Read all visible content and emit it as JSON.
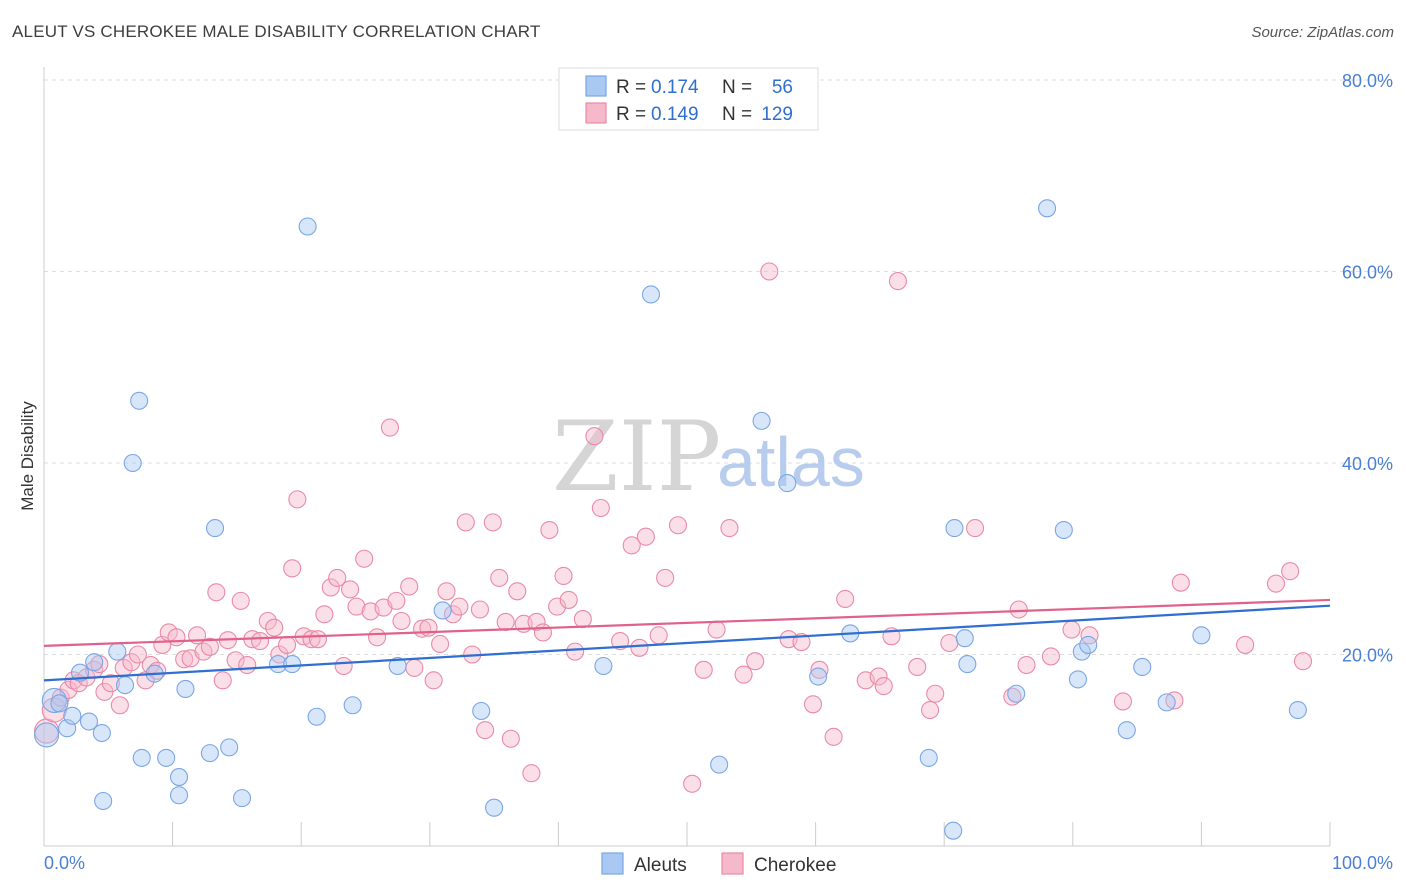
{
  "header": {
    "title": "ALEUT VS CHEROKEE MALE DISABILITY CORRELATION CHART",
    "source": "Source: ZipAtlas.com"
  },
  "watermark": {
    "part1": "ZIP",
    "part2": "atlas"
  },
  "legend_top": {
    "rows": [
      {
        "r_label": "R =",
        "r_value": "0.174",
        "n_label": "N =",
        "n_value": "56",
        "color": "#a9c8f2"
      },
      {
        "r_label": "R =",
        "r_value": "0.149",
        "n_label": "N =",
        "n_value": "129",
        "color": "#f6b9cb"
      }
    ]
  },
  "legend_bottom": {
    "items": [
      {
        "label": "Aleuts",
        "color": "#a9c8f2"
      },
      {
        "label": "Cherokee",
        "color": "#f6b9cb"
      }
    ]
  },
  "chart_data": {
    "type": "scatter",
    "title": "ALEUT VS CHEROKEE MALE DISABILITY CORRELATION CHART",
    "xlabel": "",
    "ylabel": "Male Disability",
    "xlim": [
      0,
      100
    ],
    "ylim": [
      0,
      80
    ],
    "x_tick_labels": [
      "0.0%",
      "100.0%"
    ],
    "y_ticks": [
      20,
      40,
      60,
      80
    ],
    "y_tick_labels": [
      "20.0%",
      "40.0%",
      "60.0%",
      "80.0%"
    ],
    "grid": "horizontal dashed",
    "legend_position": "top-center",
    "series": [
      {
        "name": "Aleuts",
        "color": "#7aa6e6",
        "fill": "#a9c8f2",
        "trend": {
          "x": [
            0,
            100
          ],
          "y": [
            17.3,
            25.1
          ]
        },
        "points": [
          [
            0.2,
            11.6
          ],
          [
            0.8,
            15.2
          ],
          [
            1.2,
            14.9
          ],
          [
            1.8,
            12.3
          ],
          [
            2.2,
            13.6
          ],
          [
            2.8,
            18.1
          ],
          [
            3.5,
            13.0
          ],
          [
            3.9,
            19.2
          ],
          [
            4.5,
            11.8
          ],
          [
            4.6,
            4.7
          ],
          [
            5.7,
            20.3
          ],
          [
            6.3,
            16.8
          ],
          [
            6.9,
            40.0
          ],
          [
            7.4,
            46.5
          ],
          [
            7.6,
            9.2
          ],
          [
            8.6,
            18.0
          ],
          [
            9.5,
            9.2
          ],
          [
            10.5,
            5.3
          ],
          [
            10.5,
            7.2
          ],
          [
            11.0,
            16.4
          ],
          [
            12.9,
            9.7
          ],
          [
            13.3,
            33.2
          ],
          [
            14.4,
            10.3
          ],
          [
            15.4,
            5.0
          ],
          [
            18.2,
            19.0
          ],
          [
            19.3,
            19.0
          ],
          [
            20.5,
            64.7
          ],
          [
            21.2,
            13.5
          ],
          [
            24.0,
            14.7
          ],
          [
            27.5,
            18.8
          ],
          [
            31.0,
            24.6
          ],
          [
            34.0,
            14.1
          ],
          [
            35.0,
            4.0
          ],
          [
            43.5,
            18.8
          ],
          [
            47.2,
            57.6
          ],
          [
            52.5,
            8.5
          ],
          [
            55.8,
            44.4
          ],
          [
            57.8,
            37.9
          ],
          [
            60.2,
            17.7
          ],
          [
            62.7,
            22.2
          ],
          [
            68.8,
            9.2
          ],
          [
            70.7,
            1.6
          ],
          [
            70.8,
            33.2
          ],
          [
            71.6,
            21.7
          ],
          [
            71.8,
            19.0
          ],
          [
            75.6,
            15.9
          ],
          [
            78.0,
            66.6
          ],
          [
            79.3,
            33.0
          ],
          [
            80.4,
            17.4
          ],
          [
            80.7,
            20.3
          ],
          [
            81.2,
            21.0
          ],
          [
            84.2,
            12.1
          ],
          [
            85.4,
            18.7
          ],
          [
            87.3,
            15.0
          ],
          [
            90.0,
            22.0
          ],
          [
            97.5,
            14.2
          ]
        ]
      },
      {
        "name": "Cherokee",
        "color": "#e98aa6",
        "fill": "#f6b9cb",
        "trend": {
          "x": [
            0,
            100
          ],
          "y": [
            20.9,
            25.7
          ]
        },
        "points": [
          [
            0.2,
            12.0
          ],
          [
            0.8,
            14.2
          ],
          [
            1.3,
            15.5
          ],
          [
            1.9,
            16.3
          ],
          [
            2.3,
            17.3
          ],
          [
            2.7,
            17.0
          ],
          [
            3.3,
            17.6
          ],
          [
            3.9,
            18.4
          ],
          [
            4.3,
            19.0
          ],
          [
            4.7,
            16.1
          ],
          [
            5.2,
            17.0
          ],
          [
            5.9,
            14.7
          ],
          [
            6.2,
            18.6
          ],
          [
            6.8,
            19.2
          ],
          [
            7.3,
            20.0
          ],
          [
            7.9,
            17.3
          ],
          [
            8.3,
            18.9
          ],
          [
            8.8,
            18.3
          ],
          [
            9.2,
            21.0
          ],
          [
            9.7,
            22.3
          ],
          [
            10.3,
            21.8
          ],
          [
            10.9,
            19.5
          ],
          [
            11.4,
            19.6
          ],
          [
            11.9,
            22.0
          ],
          [
            12.4,
            20.3
          ],
          [
            12.9,
            20.8
          ],
          [
            13.4,
            26.5
          ],
          [
            13.9,
            17.3
          ],
          [
            14.3,
            21.5
          ],
          [
            14.9,
            19.4
          ],
          [
            15.3,
            25.6
          ],
          [
            15.8,
            18.9
          ],
          [
            16.2,
            21.6
          ],
          [
            16.8,
            21.4
          ],
          [
            17.4,
            23.5
          ],
          [
            17.9,
            22.8
          ],
          [
            18.3,
            20.0
          ],
          [
            18.9,
            21.0
          ],
          [
            19.3,
            29.0
          ],
          [
            19.7,
            36.2
          ],
          [
            20.2,
            21.9
          ],
          [
            20.8,
            21.6
          ],
          [
            21.3,
            21.6
          ],
          [
            21.8,
            24.2
          ],
          [
            22.3,
            27.0
          ],
          [
            22.8,
            28.0
          ],
          [
            23.3,
            18.8
          ],
          [
            23.8,
            26.8
          ],
          [
            24.3,
            25.0
          ],
          [
            24.9,
            30.0
          ],
          [
            25.4,
            24.5
          ],
          [
            25.9,
            21.8
          ],
          [
            26.4,
            24.9
          ],
          [
            26.9,
            43.7
          ],
          [
            27.4,
            25.6
          ],
          [
            27.8,
            23.5
          ],
          [
            28.4,
            27.1
          ],
          [
            28.8,
            18.6
          ],
          [
            29.4,
            22.7
          ],
          [
            29.9,
            22.8
          ],
          [
            30.3,
            17.3
          ],
          [
            30.8,
            21.1
          ],
          [
            31.3,
            26.6
          ],
          [
            31.8,
            24.2
          ],
          [
            32.3,
            25.0
          ],
          [
            32.8,
            33.8
          ],
          [
            33.3,
            20.0
          ],
          [
            33.9,
            24.7
          ],
          [
            34.3,
            12.1
          ],
          [
            34.9,
            33.8
          ],
          [
            35.4,
            28.0
          ],
          [
            35.9,
            23.4
          ],
          [
            36.3,
            11.2
          ],
          [
            36.8,
            26.6
          ],
          [
            37.3,
            23.2
          ],
          [
            37.9,
            7.6
          ],
          [
            38.3,
            23.4
          ],
          [
            38.8,
            22.3
          ],
          [
            39.3,
            33.0
          ],
          [
            39.9,
            25.0
          ],
          [
            40.4,
            28.2
          ],
          [
            40.8,
            25.7
          ],
          [
            41.3,
            20.3
          ],
          [
            41.9,
            23.7
          ],
          [
            42.8,
            42.8
          ],
          [
            43.3,
            35.3
          ],
          [
            44.8,
            21.4
          ],
          [
            45.7,
            31.4
          ],
          [
            46.3,
            20.7
          ],
          [
            46.8,
            32.3
          ],
          [
            47.8,
            22.0
          ],
          [
            48.3,
            28.0
          ],
          [
            49.3,
            33.5
          ],
          [
            50.4,
            6.5
          ],
          [
            51.3,
            18.4
          ],
          [
            52.3,
            22.6
          ],
          [
            53.3,
            33.2
          ],
          [
            54.4,
            17.9
          ],
          [
            55.3,
            19.3
          ],
          [
            56.4,
            60.0
          ],
          [
            57.9,
            21.6
          ],
          [
            58.9,
            21.3
          ],
          [
            59.8,
            14.8
          ],
          [
            60.3,
            18.4
          ],
          [
            61.4,
            11.4
          ],
          [
            62.3,
            25.8
          ],
          [
            63.9,
            17.3
          ],
          [
            64.9,
            17.7
          ],
          [
            65.3,
            16.7
          ],
          [
            65.9,
            21.9
          ],
          [
            66.4,
            59.0
          ],
          [
            67.9,
            18.7
          ],
          [
            68.9,
            14.2
          ],
          [
            69.3,
            15.9
          ],
          [
            70.4,
            21.2
          ],
          [
            72.4,
            33.2
          ],
          [
            75.3,
            15.6
          ],
          [
            75.8,
            24.7
          ],
          [
            76.4,
            18.9
          ],
          [
            78.3,
            19.8
          ],
          [
            79.9,
            22.6
          ],
          [
            81.3,
            22.0
          ],
          [
            83.9,
            15.1
          ],
          [
            87.9,
            15.2
          ],
          [
            88.4,
            27.5
          ],
          [
            93.4,
            21.0
          ],
          [
            95.8,
            27.4
          ],
          [
            96.9,
            28.7
          ],
          [
            97.9,
            19.3
          ]
        ]
      }
    ]
  }
}
